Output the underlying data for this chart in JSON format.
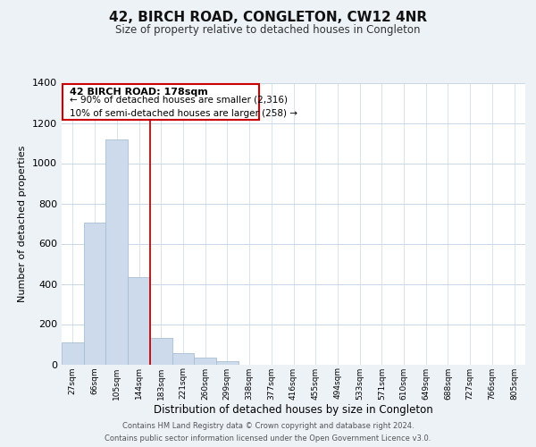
{
  "title": "42, BIRCH ROAD, CONGLETON, CW12 4NR",
  "subtitle": "Size of property relative to detached houses in Congleton",
  "xlabel": "Distribution of detached houses by size in Congleton",
  "ylabel": "Number of detached properties",
  "bin_labels": [
    "27sqm",
    "66sqm",
    "105sqm",
    "144sqm",
    "183sqm",
    "221sqm",
    "260sqm",
    "299sqm",
    "338sqm",
    "377sqm",
    "416sqm",
    "455sqm",
    "494sqm",
    "533sqm",
    "571sqm",
    "610sqm",
    "649sqm",
    "688sqm",
    "727sqm",
    "766sqm",
    "805sqm"
  ],
  "bar_heights": [
    110,
    706,
    1119,
    432,
    130,
    57,
    32,
    14,
    0,
    0,
    0,
    0,
    0,
    0,
    0,
    0,
    0,
    0,
    0,
    0,
    0
  ],
  "bar_color": "#ccdaeb",
  "bar_edge_color": "#a8bfd4",
  "property_line_x": 4,
  "property_line_color": "#cc0000",
  "ylim": [
    0,
    1400
  ],
  "yticks": [
    0,
    200,
    400,
    600,
    800,
    1000,
    1200,
    1400
  ],
  "annotation_title": "42 BIRCH ROAD: 178sqm",
  "annotation_line1": "← 90% of detached houses are smaller (2,316)",
  "annotation_line2": "10% of semi-detached houses are larger (258) →",
  "annotation_box_facecolor": "#ffffff",
  "annotation_box_edgecolor": "#cc0000",
  "footer_line1": "Contains HM Land Registry data © Crown copyright and database right 2024.",
  "footer_line2": "Contains public sector information licensed under the Open Government Licence v3.0.",
  "background_color": "#edf2f7",
  "plot_bg_color": "#ffffff",
  "grid_color": "#c8d8e8"
}
